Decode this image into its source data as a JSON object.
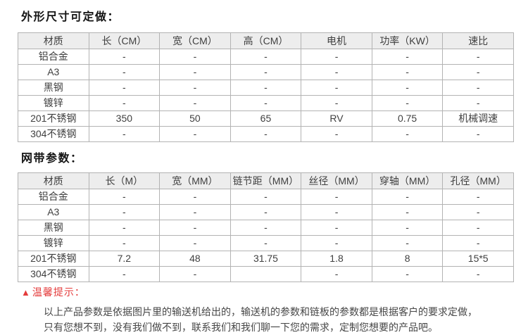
{
  "colors": {
    "header_bg": "#ededed",
    "table_border": "#b3b3b3",
    "body_text": "#3f3f3f",
    "warning_red": "#e43b3b"
  },
  "section_dimensions": {
    "title": "外形尺寸可定做："
  },
  "table1": {
    "headers": [
      "材质",
      "长（CM）",
      "宽（CM）",
      "高（CM）",
      "电机",
      "功率（KW）",
      "速比"
    ],
    "rows": [
      [
        "铝合金",
        "-",
        "-",
        "-",
        "-",
        "-",
        "-"
      ],
      [
        "A3",
        "-",
        "-",
        "-",
        "-",
        "-",
        "-"
      ],
      [
        "黑钢",
        "-",
        "-",
        "-",
        "-",
        "-",
        "-"
      ],
      [
        "镀锌",
        "-",
        "-",
        "-",
        "-",
        "-",
        "-"
      ],
      [
        "201不锈钢",
        "350",
        "50",
        "65",
        "RV",
        "0.75",
        "机械调速"
      ],
      [
        "304不锈钢",
        "-",
        "-",
        "-",
        "-",
        "-",
        "-"
      ]
    ]
  },
  "section_belt": {
    "title": "网带参数："
  },
  "table2": {
    "headers": [
      "材质",
      "长（M）",
      "宽（MM）",
      "链节距（MM）",
      "丝径（MM）",
      "穿轴（MM）",
      "孔径（MM）"
    ],
    "rows": [
      [
        "铝合金",
        "-",
        "-",
        "-",
        "-",
        "-",
        "-"
      ],
      [
        "A3",
        "-",
        "-",
        "-",
        "-",
        "-",
        "-"
      ],
      [
        "黑钢",
        "-",
        "-",
        "-",
        "-",
        "-",
        "-"
      ],
      [
        "镀锌",
        "-",
        "-",
        "-",
        "-",
        "-",
        "-"
      ],
      [
        "201不锈钢",
        "7.2",
        "48",
        "31.75",
        "1.8",
        "8",
        "15*5"
      ],
      [
        "304不锈钢",
        "-",
        "-",
        "",
        "-",
        "-",
        "-"
      ]
    ]
  },
  "notice": {
    "icon": "▲",
    "title": "温馨提示：",
    "lines": [
      "以上产品参数是依据图片里的输送机给出的，输送机的参数和链板的参数都是根据客户的要求定做，",
      "只有您想不到，没有我们做不到，联系我们和我们聊一下您的需求，定制您想要的产品吧。"
    ]
  }
}
